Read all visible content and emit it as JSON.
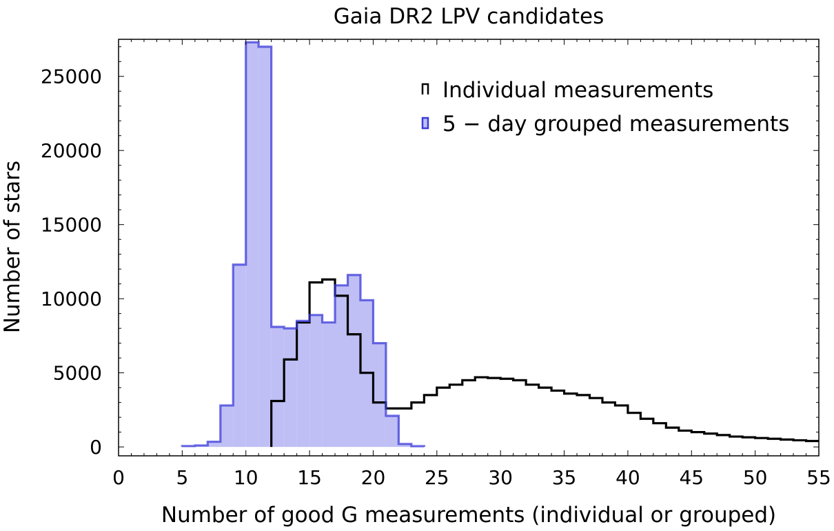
{
  "chart_data": {
    "type": "bar",
    "title": "Gaia DR2 LPV candidates",
    "xlabel": "Number of good G measurements (individual or grouped)",
    "ylabel": "Number of stars",
    "xlim": [
      0,
      55
    ],
    "ylim": [
      -600,
      27500
    ],
    "xticks": [
      0,
      5,
      10,
      15,
      20,
      25,
      30,
      35,
      40,
      45,
      50,
      55
    ],
    "yticks": [
      0,
      5000,
      10000,
      15000,
      20000,
      25000
    ],
    "grid": false,
    "legend_position": "top-right",
    "bin_width": 1,
    "series": [
      {
        "name": "5 − day grouped measurements",
        "style": "filled-step",
        "color": "#3b3bd9",
        "fill": "#bfbff5",
        "bin_starts": [
          5,
          6,
          7,
          8,
          9,
          10,
          11,
          12,
          13,
          14,
          15,
          16,
          17,
          18,
          19,
          20,
          21,
          22,
          23
        ],
        "values": [
          60,
          100,
          350,
          2800,
          12300,
          27300,
          27000,
          8100,
          8000,
          8500,
          8900,
          8400,
          10900,
          11600,
          9900,
          7000,
          2100,
          200,
          50
        ]
      },
      {
        "name": "Individual measurements",
        "style": "step",
        "color": "#000000",
        "bin_starts": [
          12,
          13,
          14,
          15,
          16,
          17,
          18,
          19,
          20,
          21,
          22,
          23,
          24,
          25,
          26,
          27,
          28,
          29,
          30,
          31,
          32,
          33,
          34,
          35,
          36,
          37,
          38,
          39,
          40,
          41,
          42,
          43,
          44,
          45,
          46,
          47,
          48,
          49,
          50,
          51,
          52,
          53,
          54
        ],
        "values": [
          3100,
          5900,
          8400,
          11100,
          11300,
          10200,
          7600,
          5000,
          3000,
          2600,
          2600,
          3000,
          3500,
          4000,
          4200,
          4500,
          4700,
          4650,
          4600,
          4500,
          4200,
          4000,
          3800,
          3600,
          3500,
          3300,
          3000,
          2800,
          2300,
          1900,
          1600,
          1300,
          1100,
          1000,
          900,
          800,
          700,
          650,
          600,
          550,
          500,
          450,
          400
        ]
      }
    ]
  }
}
